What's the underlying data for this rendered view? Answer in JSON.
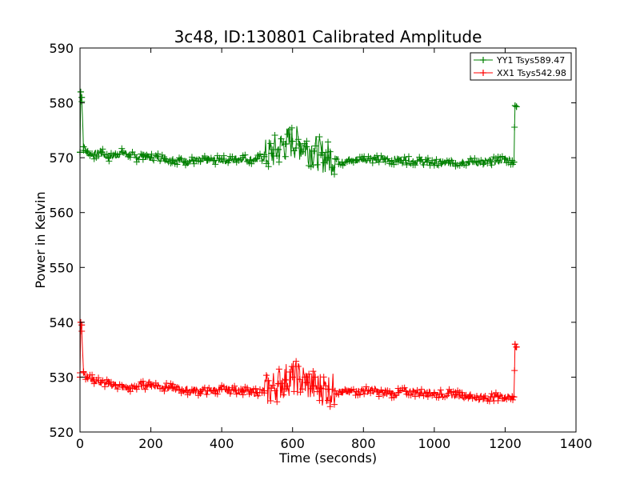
{
  "chart_data": {
    "type": "line",
    "title": "3c48, ID:130801 Calibrated Amplitude",
    "xlabel": "Time (seconds)",
    "ylabel": "Power in Kelvin",
    "xlim": [
      0,
      1400
    ],
    "ylim": [
      520,
      590
    ],
    "xticks": [
      0,
      200,
      400,
      600,
      800,
      1000,
      1200,
      1400
    ],
    "yticks": [
      520,
      530,
      540,
      550,
      560,
      570,
      580,
      590
    ],
    "grid": false,
    "legend_position": "top-right",
    "marker": "plus",
    "series": [
      {
        "name": "YY1 Tsys589.47",
        "color": "#008000",
        "x": [
          0,
          2,
          5,
          10,
          20,
          40,
          60,
          80,
          100,
          120,
          140,
          160,
          180,
          200,
          220,
          240,
          260,
          280,
          300,
          320,
          340,
          360,
          380,
          400,
          420,
          440,
          460,
          480,
          500,
          520,
          540,
          560,
          580,
          600,
          620,
          640,
          660,
          680,
          700,
          720,
          740,
          760,
          780,
          800,
          820,
          840,
          860,
          880,
          900,
          920,
          940,
          960,
          980,
          1000,
          1020,
          1040,
          1060,
          1080,
          1100,
          1120,
          1140,
          1160,
          1180,
          1200,
          1220,
          1225,
          1228,
          1232
        ],
        "values": [
          571,
          582,
          581,
          572,
          571,
          570.5,
          571,
          570,
          570.5,
          571,
          570.5,
          570,
          570.5,
          570,
          570.2,
          569.8,
          569.5,
          569.6,
          569.3,
          569.5,
          569.4,
          569.6,
          569.5,
          569.7,
          569.5,
          569.8,
          570,
          569.6,
          569.8,
          570.2,
          570.8,
          571.5,
          572.5,
          573,
          572.5,
          572,
          571.2,
          570.5,
          570,
          569.8,
          569.2,
          569.4,
          569.6,
          569.8,
          569.9,
          569.6,
          569.8,
          569.5,
          569.7,
          569.5,
          569.3,
          569.4,
          569.2,
          569,
          568.9,
          569.1,
          569,
          569.2,
          569.3,
          569.2,
          569,
          569.3,
          569.5,
          569.8,
          569.5,
          569.2,
          579.5,
          579.3
        ]
      },
      {
        "name": "XX1 Tsys542.98",
        "color": "#ff0000",
        "x": [
          0,
          2,
          5,
          10,
          20,
          40,
          60,
          80,
          100,
          120,
          140,
          160,
          180,
          200,
          220,
          240,
          260,
          280,
          300,
          320,
          340,
          360,
          380,
          400,
          420,
          440,
          460,
          480,
          500,
          520,
          540,
          560,
          580,
          600,
          620,
          640,
          660,
          680,
          700,
          720,
          740,
          760,
          780,
          800,
          820,
          840,
          860,
          880,
          900,
          920,
          940,
          960,
          980,
          1000,
          1020,
          1040,
          1060,
          1080,
          1100,
          1120,
          1140,
          1160,
          1180,
          1200,
          1220,
          1225,
          1228,
          1232
        ],
        "values": [
          530,
          540,
          539.5,
          531,
          530,
          529.5,
          529,
          528.8,
          528.5,
          528.2,
          528,
          528.3,
          528.5,
          528.7,
          528.4,
          528.2,
          528,
          527.8,
          527.6,
          527.5,
          527.4,
          527.5,
          527.6,
          527.8,
          527.7,
          527.6,
          527.5,
          527.3,
          527.2,
          527.5,
          528,
          528.8,
          529.5,
          530,
          529.6,
          529,
          528.4,
          528,
          527.8,
          527.5,
          527.2,
          527.3,
          527.4,
          527.5,
          527.6,
          527.3,
          527.1,
          527,
          527.2,
          527.4,
          527.3,
          527.1,
          527.2,
          527,
          526.9,
          527,
          526.8,
          526.7,
          526.5,
          526.3,
          526.2,
          526.4,
          526.5,
          526.3,
          526.5,
          526.4,
          536,
          535.5
        ]
      }
    ]
  }
}
